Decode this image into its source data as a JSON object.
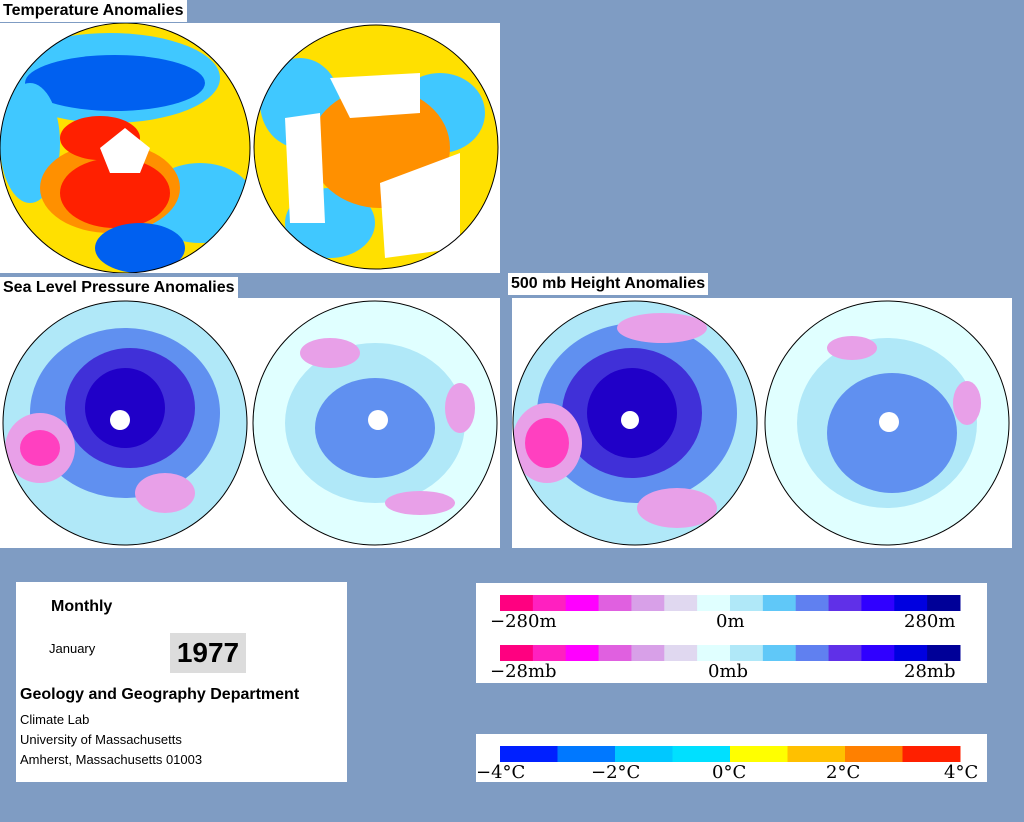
{
  "titles": {
    "temperature": "Temperature Anomalies",
    "slp": "Sea Level Pressure Anomalies",
    "height500": "500 mb Height Anomalies"
  },
  "info": {
    "period_type": "Monthly",
    "month": "January",
    "year": "1977",
    "department": "Geology and Geography Department",
    "address_lines": [
      "Climate Lab",
      "University of Massachusetts",
      "Amherst, Massachusetts 01003"
    ]
  },
  "legend_height": {
    "labels": [
      "−280m",
      "0m",
      "280m"
    ],
    "colors": [
      "#ff0080",
      "#ff20c0",
      "#ff00ff",
      "#e060e0",
      "#d8a0e8",
      "#e0d8f0",
      "#e0ffff",
      "#b0e8f8",
      "#60c8f8",
      "#6080f0",
      "#6030e8",
      "#3000ff",
      "#0000e0",
      "#000098"
    ]
  },
  "legend_pressure": {
    "labels": [
      "−28mb",
      "0mb",
      "28mb"
    ]
  },
  "legend_temperature": {
    "labels": [
      "−4°C",
      "−2°C",
      "0°C",
      "2°C",
      "4°C"
    ],
    "colors": [
      "#0020ff",
      "#0078ff",
      "#00c8ff",
      "#00e0ff",
      "#ffff00",
      "#ffc000",
      "#ff8000",
      "#ff2000"
    ]
  },
  "map_colors": {
    "pink": "#ff40c0",
    "lightpink": "#e8a0e8",
    "palelav": "#e8d8f0",
    "pale": "#e0ffff",
    "lightblue": "#b0e8f8",
    "blue": "#6090f0",
    "dark": "#4030d8",
    "darkest": "#2000c8",
    "t_yellow": "#ffe000",
    "t_orange": "#ff9000",
    "t_red": "#ff2000",
    "t_blue": "#0060f0",
    "t_cyan": "#40c8ff"
  }
}
